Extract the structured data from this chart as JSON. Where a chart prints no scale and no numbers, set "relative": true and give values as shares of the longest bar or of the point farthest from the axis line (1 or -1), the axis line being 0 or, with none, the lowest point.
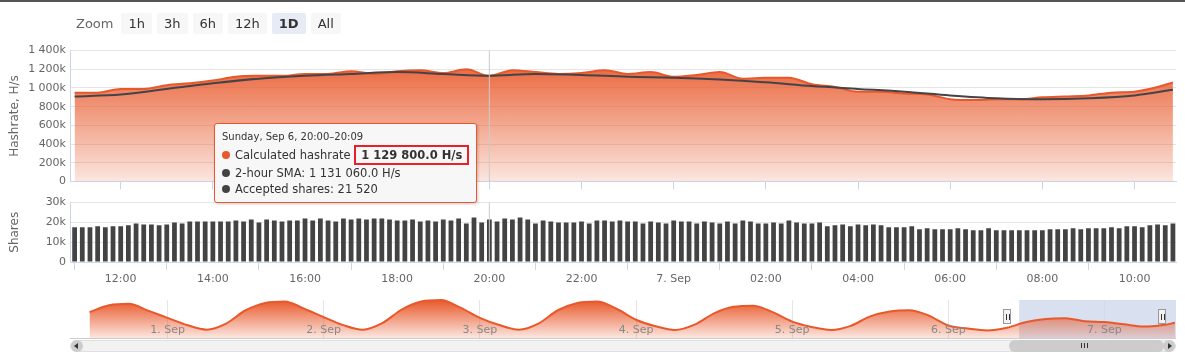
{
  "chart_data": [
    {
      "type": "other",
      "annotations": [
        "Zoom",
        "1h",
        "3h",
        "6h",
        "12h",
        "1D",
        "All"
      ]
    },
    {
      "type": "area",
      "ylabel": "Hashrate, H/s",
      "xlim": [
        "--09-06T10:54",
        "--09-07T10:54"
      ],
      "xticks": [
        {
          "value": "--09-06T12:00",
          "label": null
        },
        {
          "value": "--09-06T14:00",
          "label": null
        },
        {
          "value": "--09-06T16:00",
          "label": null
        },
        {
          "value": "--09-06T18:00",
          "label": null
        },
        {
          "value": "--09-06T20:00",
          "label": null
        },
        {
          "value": "--09-06T22:00",
          "label": null
        },
        {
          "value": "--09-07T00:00",
          "label": null
        },
        {
          "value": "--09-07T02:00",
          "label": null
        },
        {
          "value": "--09-07T04:00",
          "label": null
        },
        {
          "value": "--09-07T06:00",
          "label": null
        },
        {
          "value": "--09-07T08:00",
          "label": null
        },
        {
          "value": "--09-07T10:00",
          "label": null
        }
      ],
      "ylim": [
        0,
        1400000
      ],
      "yticks": [
        0,
        {
          "value": 200000,
          "label": "200k"
        },
        {
          "value": 400000,
          "label": "400k"
        },
        {
          "value": 600000,
          "label": "600k"
        },
        {
          "value": 800000,
          "label": "800k"
        },
        {
          "value": 1000000,
          "label": "1 000k"
        },
        {
          "value": 1200000,
          "label": "1 200k"
        },
        {
          "value": 1400000,
          "label": "1 400k"
        }
      ],
      "grid": "y",
      "tick_labels": "y",
      "series": [
        {
          "type": "area",
          "color": "#e8582a",
          "x": [
            "--09-06T11:00",
            "--09-06T11:30",
            "--09-06T12:00",
            "--09-06T12:30",
            "--09-06T13:00",
            "--09-06T13:30",
            "--09-06T14:00",
            "--09-06T14:30",
            "--09-06T15:00",
            "--09-06T15:30",
            "--09-06T16:00",
            "--09-06T16:30",
            "--09-06T17:00",
            "--09-06T17:30",
            "--09-06T18:00",
            "--09-06T18:30",
            "--09-06T19:00",
            "--09-06T19:30",
            "--09-06T20:00",
            "--09-06T20:30",
            "--09-06T21:00",
            "--09-06T21:30",
            "--09-06T22:00",
            "--09-06T22:30",
            "--09-06T23:00",
            "--09-06T23:30",
            "--09-07T00:00",
            "--09-07T00:30",
            "--09-07T01:00",
            "--09-07T01:30",
            "--09-07T02:00",
            "--09-07T02:30",
            "--09-07T03:00",
            "--09-07T03:30",
            "--09-07T04:00",
            "--09-07T04:30",
            "--09-07T05:00",
            "--09-07T05:30",
            "--09-07T06:00",
            "--09-07T06:30",
            "--09-07T07:00",
            "--09-07T07:30",
            "--09-07T08:00",
            "--09-07T08:30",
            "--09-07T09:00",
            "--09-07T09:30",
            "--09-07T10:00",
            "--09-07T10:30",
            "--09-07T10:50"
          ],
          "values": [
            950000,
            950000,
            990000,
            990000,
            1030000,
            1050000,
            1080000,
            1120000,
            1130000,
            1130000,
            1150000,
            1150000,
            1180000,
            1150000,
            1180000,
            1190000,
            1160000,
            1200000,
            1129800,
            1190000,
            1170000,
            1150000,
            1160000,
            1190000,
            1150000,
            1170000,
            1120000,
            1140000,
            1170000,
            1100000,
            1110000,
            1110000,
            1040000,
            1010000,
            960000,
            960000,
            940000,
            930000,
            880000,
            870000,
            880000,
            880000,
            900000,
            910000,
            920000,
            950000,
            960000,
            1010000,
            1060000
          ]
        },
        {
          "type": "line",
          "color": "#444448",
          "x": [
            "--09-06T11:00",
            "--09-06T12:00",
            "--09-06T13:00",
            "--09-06T14:00",
            "--09-06T15:00",
            "--09-06T16:00",
            "--09-06T17:00",
            "--09-06T18:00",
            "--09-06T19:00",
            "--09-06T20:00",
            "--09-06T21:00",
            "--09-06T22:00",
            "--09-06T23:00",
            "--09-07T00:00",
            "--09-07T01:00",
            "--09-07T02:00",
            "--09-07T03:00",
            "--09-07T04:00",
            "--09-07T05:00",
            "--09-07T06:00",
            "--09-07T07:00",
            "--09-07T08:00",
            "--09-07T09:00",
            "--09-07T10:00",
            "--09-07T10:50"
          ],
          "values": [
            910000,
            930000,
            990000,
            1050000,
            1100000,
            1130000,
            1150000,
            1170000,
            1150000,
            1131060,
            1150000,
            1140000,
            1120000,
            1110000,
            1090000,
            1060000,
            1020000,
            990000,
            960000,
            920000,
            890000,
            880000,
            890000,
            920000,
            980000
          ]
        }
      ],
      "ref_lines": [
        {
          "axis": "x",
          "value": "--09-06T20:00",
          "color": "#cccccc"
        }
      ],
      "annotations": [
        "Sunday, Sep 6, 20:00–20:09",
        "Calculated hashrate",
        "1 129 800.0 H/s",
        "2-hour SMA: 1 131 060.0 H/s",
        "Accepted shares: 21 520"
      ]
    },
    {
      "type": "bar",
      "ylabel": "Shares",
      "xlim": [
        "--09-06T10:54",
        "--09-07T10:54"
      ],
      "xticks": [
        {
          "value": "--09-06T12:00",
          "label": "12:00"
        },
        {
          "value": "--09-06T14:00",
          "label": "14:00"
        },
        {
          "value": "--09-06T16:00",
          "label": "16:00"
        },
        {
          "value": "--09-06T18:00",
          "label": "18:00"
        },
        {
          "value": "--09-06T20:00",
          "label": "20:00"
        },
        {
          "value": "--09-06T22:00",
          "label": "22:00"
        },
        {
          "value": "--09-07T00:00",
          "label": "7. Sep"
        },
        {
          "value": "--09-07T02:00",
          "label": "02:00"
        },
        {
          "value": "--09-07T04:00",
          "label": "04:00"
        },
        {
          "value": "--09-07T06:00",
          "label": "06:00"
        },
        {
          "value": "--09-07T08:00",
          "label": "08:00"
        },
        {
          "value": "--09-07T10:00",
          "label": "10:00"
        }
      ],
      "ylim": [
        0,
        30000
      ],
      "yticks": [
        0,
        {
          "value": 10000,
          "label": "10k"
        },
        {
          "value": 20000,
          "label": "20k"
        },
        {
          "value": 30000,
          "label": "30k"
        }
      ],
      "grid": "y",
      "series": [
        {
          "color": "#434343",
          "x": [
            "--09-06T11:00",
            "--09-06T11:10",
            "--09-06T11:20",
            "--09-06T11:30",
            "--09-06T11:40",
            "--09-06T11:50",
            "--09-06T12:00",
            "--09-06T12:10",
            "--09-06T12:20",
            "--09-06T12:30",
            "--09-06T12:40",
            "--09-06T12:50",
            "--09-06T13:00",
            "--09-06T13:10",
            "--09-06T13:20",
            "--09-06T13:30",
            "--09-06T13:40",
            "--09-06T13:50",
            "--09-06T14:00",
            "--09-06T14:10",
            "--09-06T14:20",
            "--09-06T14:30",
            "--09-06T14:40",
            "--09-06T14:50",
            "--09-06T15:00",
            "--09-06T15:10",
            "--09-06T15:20",
            "--09-06T15:30",
            "--09-06T15:40",
            "--09-06T15:50",
            "--09-06T16:00",
            "--09-06T16:10",
            "--09-06T16:20",
            "--09-06T16:30",
            "--09-06T16:40",
            "--09-06T16:50",
            "--09-06T17:00",
            "--09-06T17:10",
            "--09-06T17:20",
            "--09-06T17:30",
            "--09-06T17:40",
            "--09-06T17:50",
            "--09-06T18:00",
            "--09-06T18:10",
            "--09-06T18:20",
            "--09-06T18:30",
            "--09-06T18:40",
            "--09-06T18:50",
            "--09-06T19:00",
            "--09-06T19:10",
            "--09-06T19:20",
            "--09-06T19:30",
            "--09-06T19:40",
            "--09-06T19:50",
            "--09-06T20:00",
            "--09-06T20:10",
            "--09-06T20:20",
            "--09-06T20:30",
            "--09-06T20:40",
            "--09-06T20:50",
            "--09-06T21:00",
            "--09-06T21:10",
            "--09-06T21:20",
            "--09-06T21:30",
            "--09-06T21:40",
            "--09-06T21:50",
            "--09-06T22:00",
            "--09-06T22:10",
            "--09-06T22:20",
            "--09-06T22:30",
            "--09-06T22:40",
            "--09-06T22:50",
            "--09-06T23:00",
            "--09-06T23:10",
            "--09-06T23:20",
            "--09-06T23:30",
            "--09-06T23:40",
            "--09-06T23:50",
            "--09-07T00:00",
            "--09-07T00:10",
            "--09-07T00:20",
            "--09-07T00:30",
            "--09-07T00:40",
            "--09-07T00:50",
            "--09-07T01:00",
            "--09-07T01:10",
            "--09-07T01:20",
            "--09-07T01:30",
            "--09-07T01:40",
            "--09-07T01:50",
            "--09-07T02:00",
            "--09-07T02:10",
            "--09-07T02:20",
            "--09-07T02:30",
            "--09-07T02:40",
            "--09-07T02:50",
            "--09-07T03:00",
            "--09-07T03:10",
            "--09-07T03:20",
            "--09-07T03:30",
            "--09-07T03:40",
            "--09-07T03:50",
            "--09-07T04:00",
            "--09-07T04:10",
            "--09-07T04:20",
            "--09-07T04:30",
            "--09-07T04:40",
            "--09-07T04:50",
            "--09-07T05:00",
            "--09-07T05:10",
            "--09-07T05:20",
            "--09-07T05:30",
            "--09-07T05:40",
            "--09-07T05:50",
            "--09-07T06:00",
            "--09-07T06:10",
            "--09-07T06:20",
            "--09-07T06:30",
            "--09-07T06:40",
            "--09-07T06:50",
            "--09-07T07:00",
            "--09-07T07:10",
            "--09-07T07:20",
            "--09-07T07:30",
            "--09-07T07:40",
            "--09-07T07:50",
            "--09-07T08:00",
            "--09-07T08:10",
            "--09-07T08:20",
            "--09-07T08:30",
            "--09-07T08:40",
            "--09-07T08:50",
            "--09-07T09:00",
            "--09-07T09:10",
            "--09-07T09:20",
            "--09-07T09:30",
            "--09-07T09:40",
            "--09-07T09:50",
            "--09-07T10:00",
            "--09-07T10:10",
            "--09-07T10:20",
            "--09-07T10:30",
            "--09-07T10:40",
            "--09-07T10:50"
          ],
          "values": [
            17500,
            17500,
            17500,
            18000,
            17500,
            18000,
            18000,
            18500,
            19500,
            19000,
            19000,
            18500,
            19000,
            20000,
            19500,
            20500,
            20500,
            20500,
            20500,
            20500,
            20500,
            21000,
            20500,
            21500,
            20000,
            21500,
            21000,
            20500,
            21000,
            21000,
            22000,
            21000,
            22000,
            21000,
            20500,
            22000,
            21500,
            22000,
            21500,
            22000,
            22000,
            21500,
            21000,
            21000,
            21500,
            20500,
            21000,
            20500,
            21500,
            21000,
            22000,
            19500,
            22500,
            20000,
            21520,
            20500,
            22000,
            21500,
            22500,
            21500,
            19500,
            21000,
            20500,
            20000,
            20000,
            20000,
            20500,
            19500,
            21000,
            21000,
            20500,
            21000,
            20500,
            20500,
            19500,
            20500,
            20000,
            19500,
            21000,
            20500,
            20500,
            19500,
            20500,
            20000,
            19500,
            20500,
            19500,
            21000,
            20500,
            19500,
            19500,
            20000,
            19500,
            21000,
            20000,
            19500,
            19500,
            20000,
            18000,
            18500,
            19000,
            18000,
            19000,
            18500,
            19000,
            18500,
            17500,
            17500,
            17500,
            18000,
            16500,
            17000,
            16500,
            16500,
            16500,
            17000,
            16500,
            16000,
            16000,
            17000,
            16000,
            16000,
            16000,
            16000,
            16000,
            16000,
            16000,
            16500,
            16500,
            16500,
            17000,
            16500,
            17000,
            17000,
            17000,
            17500,
            17000,
            18000,
            18000,
            17500,
            18500,
            19000,
            18500,
            19500
          ]
        }
      ],
      "ref_lines": [
        {
          "axis": "x",
          "value": "--09-06T20:00",
          "color": "#cccccc"
        }
      ]
    },
    {
      "type": "area",
      "relative": true,
      "xlim": [
        "--08-31T09:00",
        "--09-07T11:00"
      ],
      "xticks": [
        {
          "value": "--09-01",
          "label": "1. Sep"
        },
        {
          "value": "--09-02",
          "label": "2. Sep"
        },
        {
          "value": "--09-03",
          "label": "3. Sep"
        },
        {
          "value": "--09-04",
          "label": "4. Sep"
        },
        {
          "value": "--09-05",
          "label": "5. Sep"
        },
        {
          "value": "--09-06",
          "label": "6. Sep"
        },
        {
          "value": "--09-07",
          "label": "7. Sep"
        }
      ],
      "grid": "x",
      "series": [
        {
          "color": "#e8582a",
          "x": [
            "--08-31T12:00",
            "--08-31T15:00",
            "--08-31T18:00",
            "--08-31T21:00",
            "--09-01T00:00",
            "--09-01T03:00",
            "--09-01T06:00",
            "--09-01T09:00",
            "--09-01T12:00",
            "--09-01T15:00",
            "--09-01T18:00",
            "--09-01T21:00",
            "--09-02T00:00",
            "--09-02T03:00",
            "--09-02T06:00",
            "--09-02T09:00",
            "--09-02T12:00",
            "--09-02T15:00",
            "--09-02T18:00",
            "--09-02T21:00",
            "--09-03T00:00",
            "--09-03T03:00",
            "--09-03T06:00",
            "--09-03T09:00",
            "--09-03T12:00",
            "--09-03T15:00",
            "--09-03T18:00",
            "--09-03T21:00",
            "--09-04T00:00",
            "--09-04T03:00",
            "--09-04T06:00",
            "--09-04T09:00",
            "--09-04T12:00",
            "--09-04T15:00",
            "--09-04T18:00",
            "--09-04T21:00",
            "--09-05T00:00",
            "--09-05T03:00",
            "--09-05T06:00",
            "--09-05T09:00",
            "--09-05T12:00",
            "--09-05T15:00",
            "--09-05T18:00",
            "--09-05T21:00",
            "--09-06T00:00",
            "--09-06T03:00",
            "--09-06T06:00",
            "--09-06T09:00",
            "--09-06T12:00",
            "--09-06T15:00",
            "--09-06T18:00",
            "--09-06T21:00",
            "--09-07T00:00",
            "--09-07T03:00",
            "--09-07T06:00",
            "--09-07T09:00",
            "--09-07T10:50"
          ],
          "values": [
            0.68,
            0.86,
            0.9,
            0.72,
            0.53,
            0.34,
            0.22,
            0.38,
            0.73,
            0.92,
            0.96,
            0.77,
            0.55,
            0.34,
            0.22,
            0.39,
            0.75,
            0.96,
            1,
            0.8,
            0.53,
            0.34,
            0.22,
            0.38,
            0.73,
            0.92,
            0.96,
            0.77,
            0.48,
            0.31,
            0.21,
            0.35,
            0.65,
            0.82,
            0.85,
            0.68,
            0.43,
            0.29,
            0.21,
            0.32,
            0.57,
            0.7,
            0.73,
            0.59,
            0.33,
            0.25,
            0.2,
            0.27,
            0.42,
            0.5,
            0.52,
            0.44,
            0.42,
            0.36,
            0.3,
            0.34,
            0.4
          ]
        }
      ],
      "bands": [
        {
          "axis": "x",
          "from": "--09-06T10:54",
          "to": "--09-07T11:00",
          "color": "#ccd6eb"
        }
      ]
    }
  ]
}
